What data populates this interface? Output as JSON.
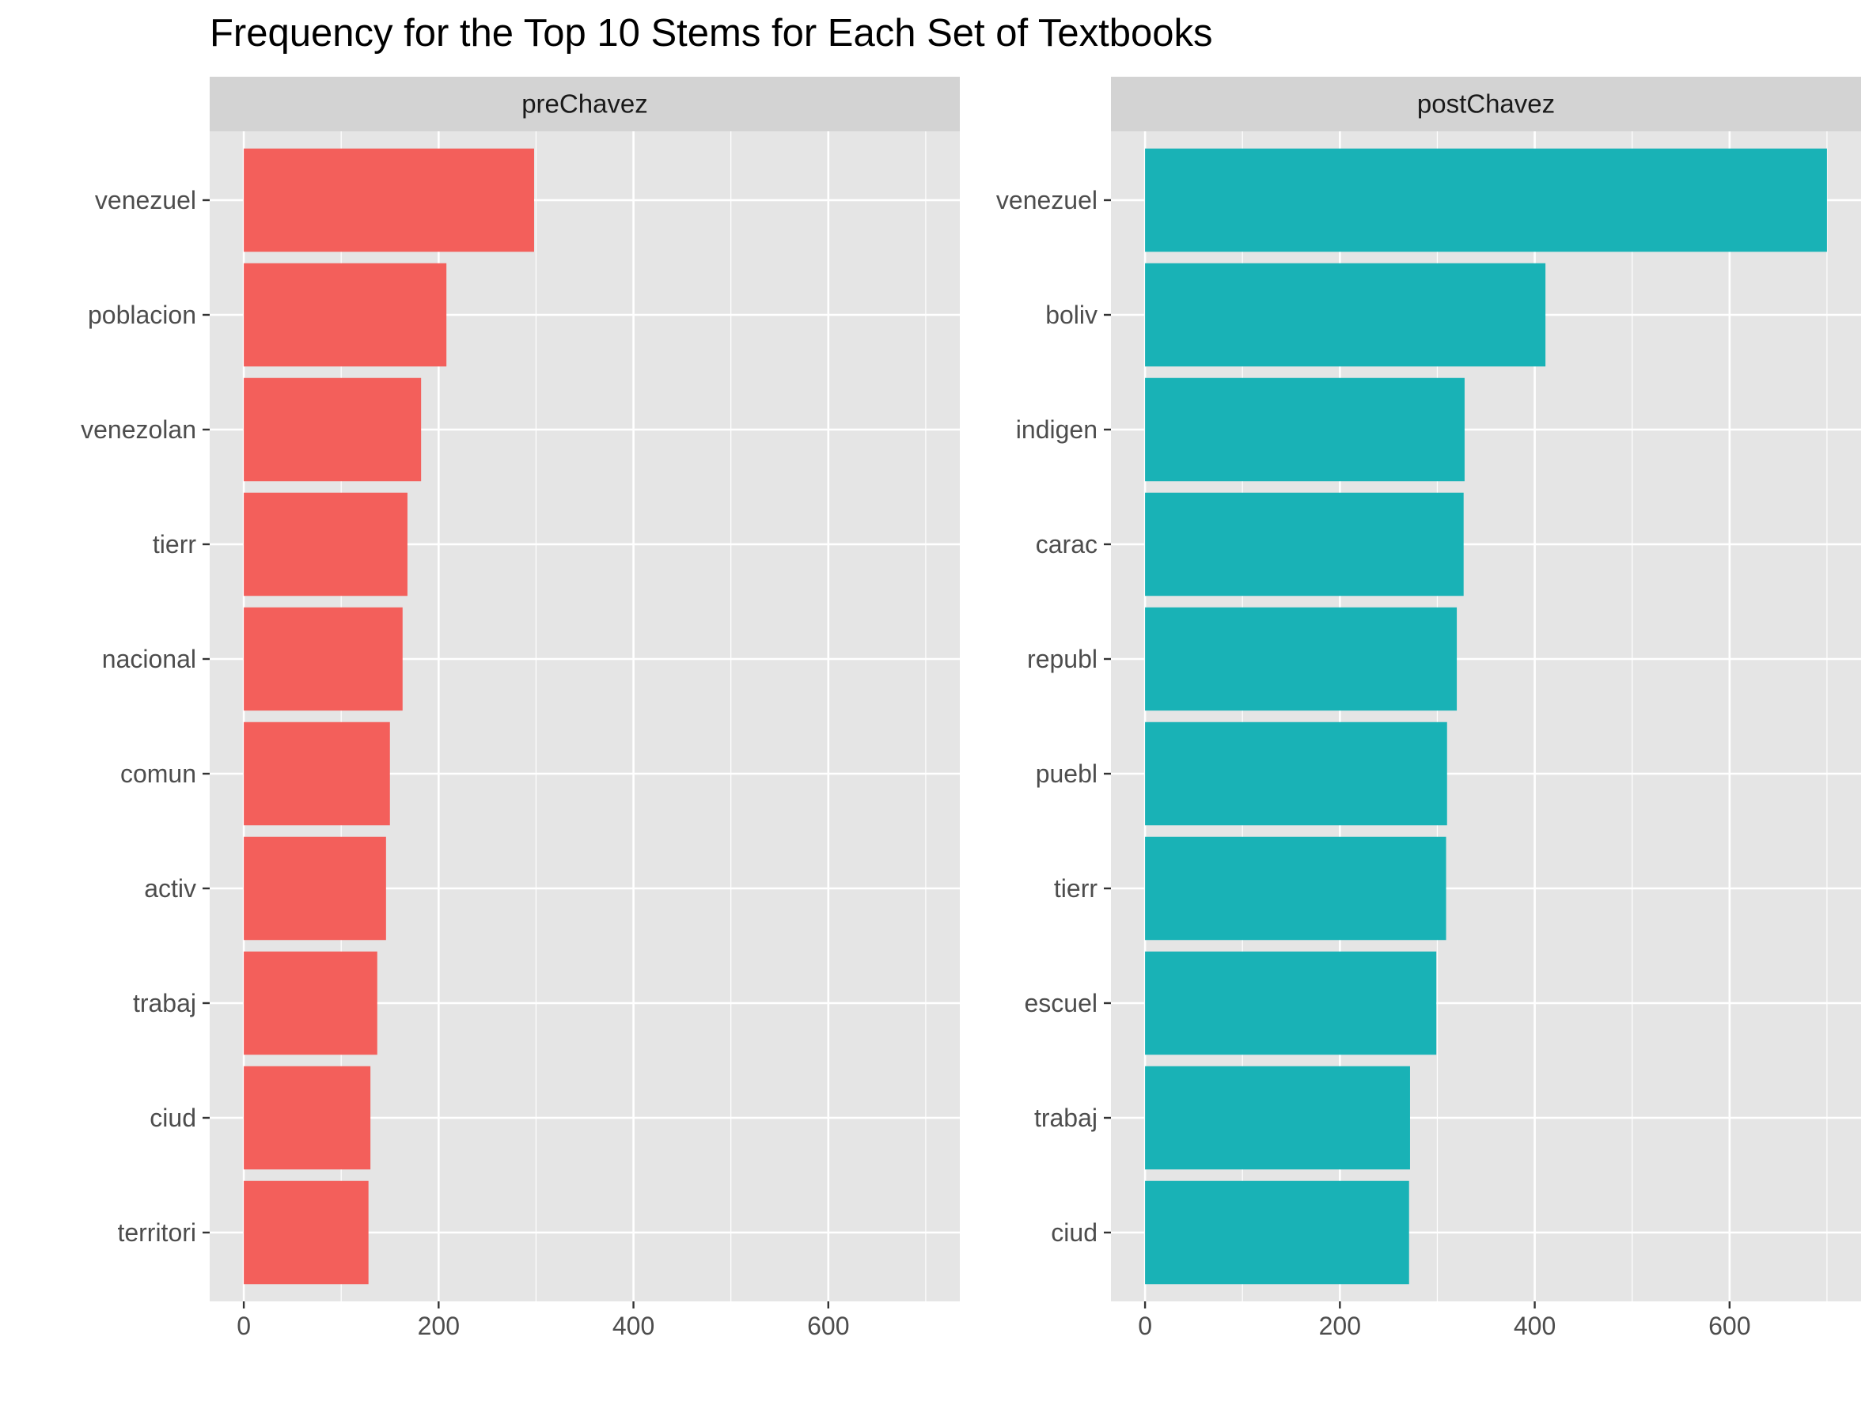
{
  "chart_data": {
    "type": "bar",
    "orientation": "horizontal",
    "title": "Frequency for the Top 10 Stems for Each Set of Textbooks",
    "xlabel": "",
    "ylabel": "",
    "xlim": [
      -35,
      735
    ],
    "xticks": [
      0,
      200,
      400,
      600
    ],
    "grid": true,
    "legend": "none",
    "panels": [
      {
        "name": "preChavez",
        "color": "#F35F5B",
        "categories": [
          "venezuel",
          "poblacion",
          "venezolan",
          "tierr",
          "nacional",
          "comun",
          "activ",
          "trabaj",
          "ciud",
          "territori"
        ],
        "values": [
          298,
          208,
          182,
          168,
          163,
          150,
          146,
          137,
          130,
          128
        ]
      },
      {
        "name": "postChavez",
        "color": "#19B2B6",
        "categories": [
          "venezuel",
          "boliv",
          "indigen",
          "carac",
          "republ",
          "puebl",
          "tierr",
          "escuel",
          "trabaj",
          "ciud"
        ],
        "values": [
          700,
          411,
          328,
          327,
          320,
          310,
          309,
          299,
          272,
          271
        ]
      }
    ]
  },
  "colors": {
    "panel_background": "#E5E5E5",
    "strip_background": "#D3D3D3",
    "gridline": "#FFFFFF",
    "axis_text": "#4D4D4D",
    "title_text": "#000000"
  }
}
